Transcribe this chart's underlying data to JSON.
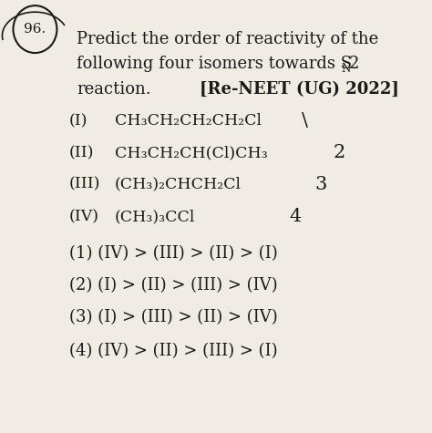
{
  "background_color": "#f0ece4",
  "question_number": "96.",
  "title_line1": "Predict the order of reactivity of the",
  "title_line2": "following four isomers towards S",
  "title_line3a": "reaction.",
  "title_line3b": "[Re-NEET (UG) 2022]",
  "labels": [
    "(I)",
    "(II)",
    "(III)",
    "(IV)"
  ],
  "formulas": [
    "CH₃CH₂CH₂CH₂Cl",
    "CH₃CH₂CH(Cl)CH₃",
    "(CH₃)₂CHCH₂Cl",
    "(CH₃)₃CCl"
  ],
  "options": [
    "(1) (IV) > (III) > (II) > (I)",
    "(2) (I) > (II) > (III) > (IV)",
    "(3) (I) > (III) > (II) > (IV)",
    "(4) (IV) > (II) > (III) > (I)"
  ],
  "text_color": "#1a1a1a",
  "font_size_main": 13,
  "font_size_label": 12.5,
  "font_size_option": 13
}
